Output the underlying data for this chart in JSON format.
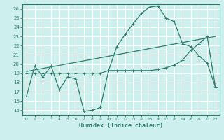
{
  "title": "",
  "xlabel": "Humidex (Indice chaleur)",
  "xlim": [
    -0.5,
    23.5
  ],
  "ylim": [
    14.5,
    26.5
  ],
  "xticks": [
    0,
    1,
    2,
    3,
    4,
    5,
    6,
    7,
    8,
    9,
    10,
    11,
    12,
    13,
    14,
    15,
    16,
    17,
    18,
    19,
    20,
    21,
    22,
    23
  ],
  "yticks": [
    15,
    16,
    17,
    18,
    19,
    20,
    21,
    22,
    23,
    24,
    25,
    26
  ],
  "bg_color": "#cef0ec",
  "line_color": "#2e7b6b",
  "grid_color": "#ffffff",
  "line1_x": [
    0,
    1,
    2,
    3,
    4,
    5,
    6,
    7,
    8,
    9,
    10,
    11,
    12,
    13,
    14,
    15,
    16,
    17,
    18,
    19,
    20,
    21,
    22,
    23
  ],
  "line1_y": [
    16.5,
    19.8,
    18.6,
    19.8,
    17.2,
    18.6,
    18.4,
    14.9,
    15.0,
    15.3,
    19.3,
    21.9,
    23.2,
    24.4,
    25.5,
    26.2,
    26.3,
    25.0,
    24.6,
    22.2,
    21.9,
    20.9,
    20.1,
    17.5
  ],
  "line2_x": [
    0,
    1,
    2,
    3,
    4,
    5,
    6,
    7,
    8,
    9,
    10,
    11,
    12,
    13,
    14,
    15,
    16,
    17,
    18,
    19,
    20,
    21,
    22,
    23
  ],
  "line2_y": [
    19.0,
    19.0,
    19.0,
    19.0,
    19.0,
    19.0,
    19.0,
    19.0,
    19.0,
    19.0,
    19.3,
    19.3,
    19.3,
    19.3,
    19.3,
    19.3,
    19.4,
    19.6,
    19.9,
    20.4,
    21.5,
    22.2,
    23.0,
    17.5
  ],
  "line3_x": [
    0,
    23
  ],
  "line3_y": [
    19.2,
    23.0
  ]
}
